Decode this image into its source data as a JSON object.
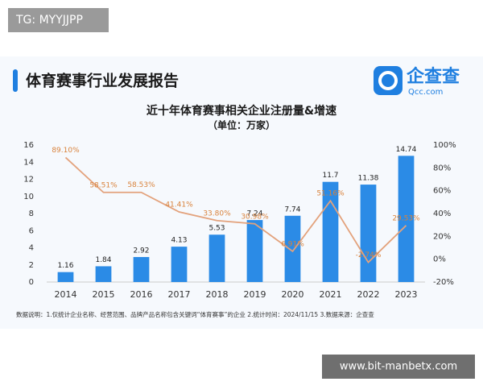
{
  "watermark_top": "TG: MYYJJPP",
  "watermark_bottom": "www.bit-manbetx.com",
  "header": {
    "title": "体育赛事行业发展报告",
    "logo_text": "企查查",
    "logo_sub": "Qcc.com"
  },
  "footnote": "数据说明：1.仅统计企业名称、经营范围、品牌产品名称包含关键词“体育赛事”的企业 2.统计时间：2024/11/15 3.数据来源：企查查",
  "chart_data": {
    "type": "combo",
    "title": "近十年体育赛事相关企业注册量&增速",
    "subtitle": "（单位：万家）",
    "categories": [
      "2014",
      "2015",
      "2016",
      "2017",
      "2018",
      "2019",
      "2020",
      "2021",
      "2022",
      "2023"
    ],
    "series": [
      {
        "type": "bar",
        "color": "#2b8be6",
        "values": [
          1.16,
          1.84,
          2.92,
          4.13,
          5.53,
          7.24,
          7.74,
          11.7,
          11.38,
          14.74
        ]
      },
      {
        "type": "line",
        "axis": "y2",
        "color": "#e3a27c",
        "values": [
          89.1,
          58.51,
          58.53,
          41.41,
          33.8,
          30.98,
          6.91,
          51.16,
          -2.74,
          29.53
        ],
        "value_labels": [
          "89.10%",
          "58.51%",
          "58.53%",
          "41.41%",
          "33.80%",
          "30.98%",
          "6.91%",
          "51.16%",
          "-2.74%",
          "29.53%"
        ]
      }
    ],
    "ylim": [
      0,
      16
    ],
    "yticks": [
      0,
      2,
      4,
      6,
      8,
      10,
      12,
      14,
      16
    ],
    "y2lim": [
      -20,
      100
    ],
    "y2ticks": [
      {
        "value": -20,
        "label": "-20%"
      },
      {
        "value": 0,
        "label": "0%"
      },
      {
        "value": 20,
        "label": "20%"
      },
      {
        "value": 40,
        "label": "40%"
      },
      {
        "value": 60,
        "label": "60%"
      },
      {
        "value": 80,
        "label": "80%"
      },
      {
        "value": 100,
        "label": "100%"
      }
    ]
  }
}
